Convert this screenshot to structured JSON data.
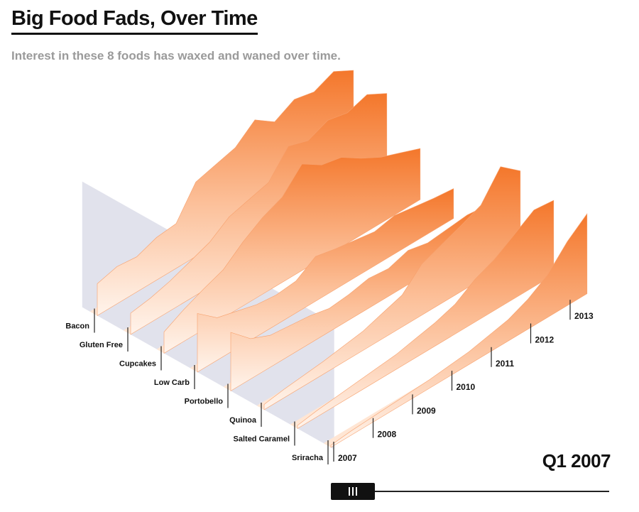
{
  "header": {
    "title": "Big Food Fads, Over Time",
    "subtitle": "Interest in these 8 foods has waxed and waned over time."
  },
  "current_period": "Q1 2007",
  "timeline": {
    "progress": 0.0
  },
  "colors": {
    "peak": "#f47a2e",
    "base": "#fff1e6",
    "plane": "#c9cadd"
  },
  "chart_data": {
    "type": "area",
    "variant": "3d-ridgeline",
    "x": [
      2007.0,
      2007.5,
      2008.0,
      2008.5,
      2009.0,
      2009.5,
      2010.0,
      2010.5,
      2011.0,
      2011.5,
      2012.0,
      2012.5,
      2013.0,
      2013.5
    ],
    "x_ticks": [
      "2007",
      "2008",
      "2009",
      "2010",
      "2011",
      "2012",
      "2013"
    ],
    "series": [
      {
        "name": "Bacon",
        "values": [
          30,
          35,
          33,
          40,
          42,
          70,
          75,
          80,
          95,
          82,
          92,
          88,
          96,
          86
        ]
      },
      {
        "name": "Gluten Free",
        "values": [
          20,
          23,
          28,
          35,
          42,
          55,
          60,
          65,
          88,
          82,
          90,
          86,
          92,
          82
        ]
      },
      {
        "name": "Cupcakes",
        "values": [
          20,
          30,
          38,
          45,
          60,
          72,
          80,
          100,
          88,
          84,
          72,
          62,
          55,
          48
        ]
      },
      {
        "name": "Low Carb",
        "values": [
          55,
          40,
          35,
          30,
          28,
          30,
          42,
          38,
          35,
          32,
          36,
          33,
          30,
          28
        ]
      },
      {
        "name": "Portobello",
        "values": [
          55,
          38,
          30,
          28,
          26,
          22,
          24,
          28,
          26,
          32,
          28,
          30,
          32,
          30
        ]
      },
      {
        "name": "Quinoa",
        "values": [
          5,
          8,
          10,
          12,
          15,
          18,
          24,
          30,
          48,
          55,
          62,
          70,
          95,
          80
        ]
      },
      {
        "name": "Salted Caramel",
        "values": [
          3,
          6,
          8,
          10,
          12,
          14,
          18,
          22,
          28,
          40,
          48,
          60,
          72,
          70
        ]
      },
      {
        "name": "Sriracha",
        "values": [
          2,
          4,
          5,
          6,
          7,
          8,
          10,
          12,
          16,
          20,
          28,
          40,
          60,
          75
        ]
      }
    ],
    "ylim": [
      0,
      100
    ]
  }
}
